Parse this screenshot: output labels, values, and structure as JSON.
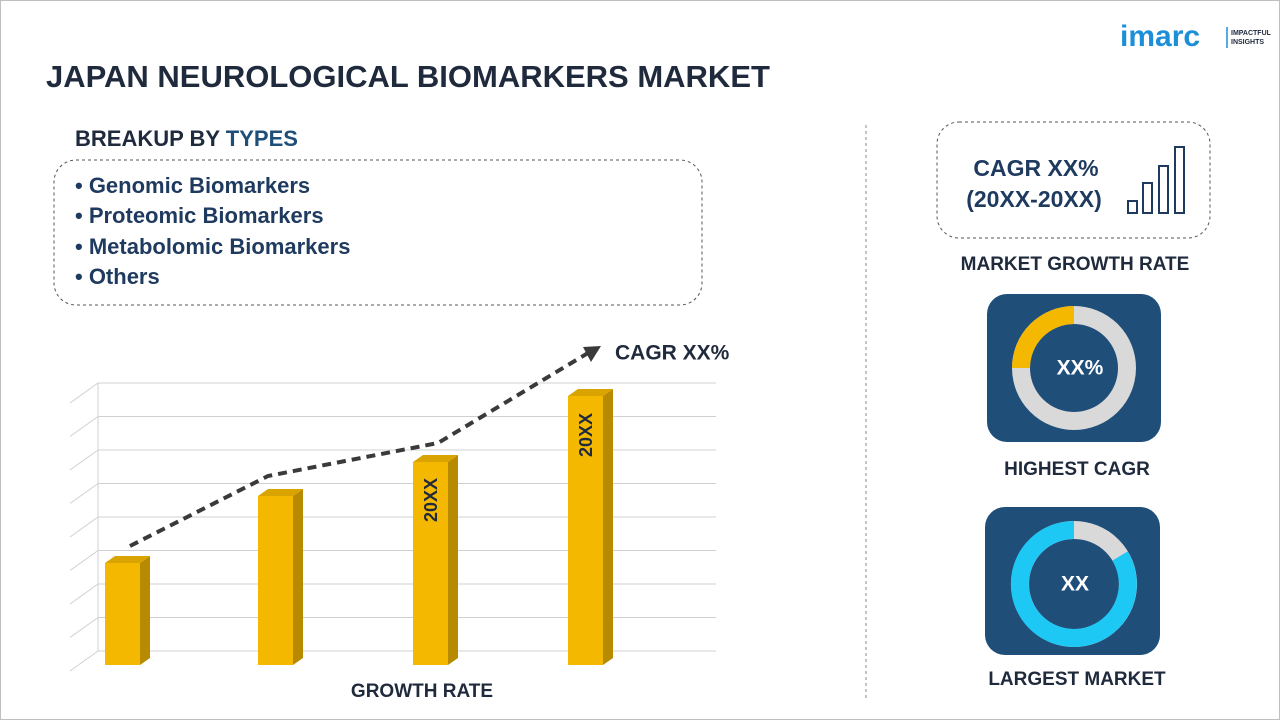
{
  "header": {
    "title": "JAPAN NEUROLOGICAL BIOMARKERS MARKET",
    "logo": "imarc",
    "logo_tagline": [
      "IMPACTFUL",
      "INSIGHTS"
    ]
  },
  "breakup": {
    "label": "BREAKUP BY",
    "label_highlight": "TYPES",
    "items": [
      "• Genomic Biomarkers",
      "• Proteomic Biomarkers",
      "• Metabolomic Biomarkers",
      "• Others"
    ]
  },
  "growth_chart": {
    "trend_label": "CAGR XX%",
    "bar_labels": [
      "20XX",
      "20XX"
    ],
    "x_label": "GROWTH RATE"
  },
  "side_panel": {
    "cagr_box": {
      "line1": "CAGR XX%",
      "line2": "(20XX-20XX)",
      "caption": "MARKET GROWTH RATE"
    },
    "highest_cagr": {
      "value": "XX%",
      "caption": "HIGHEST CAGR"
    },
    "largest_market": {
      "value": "XX",
      "caption": "LARGEST MARKET"
    }
  }
}
